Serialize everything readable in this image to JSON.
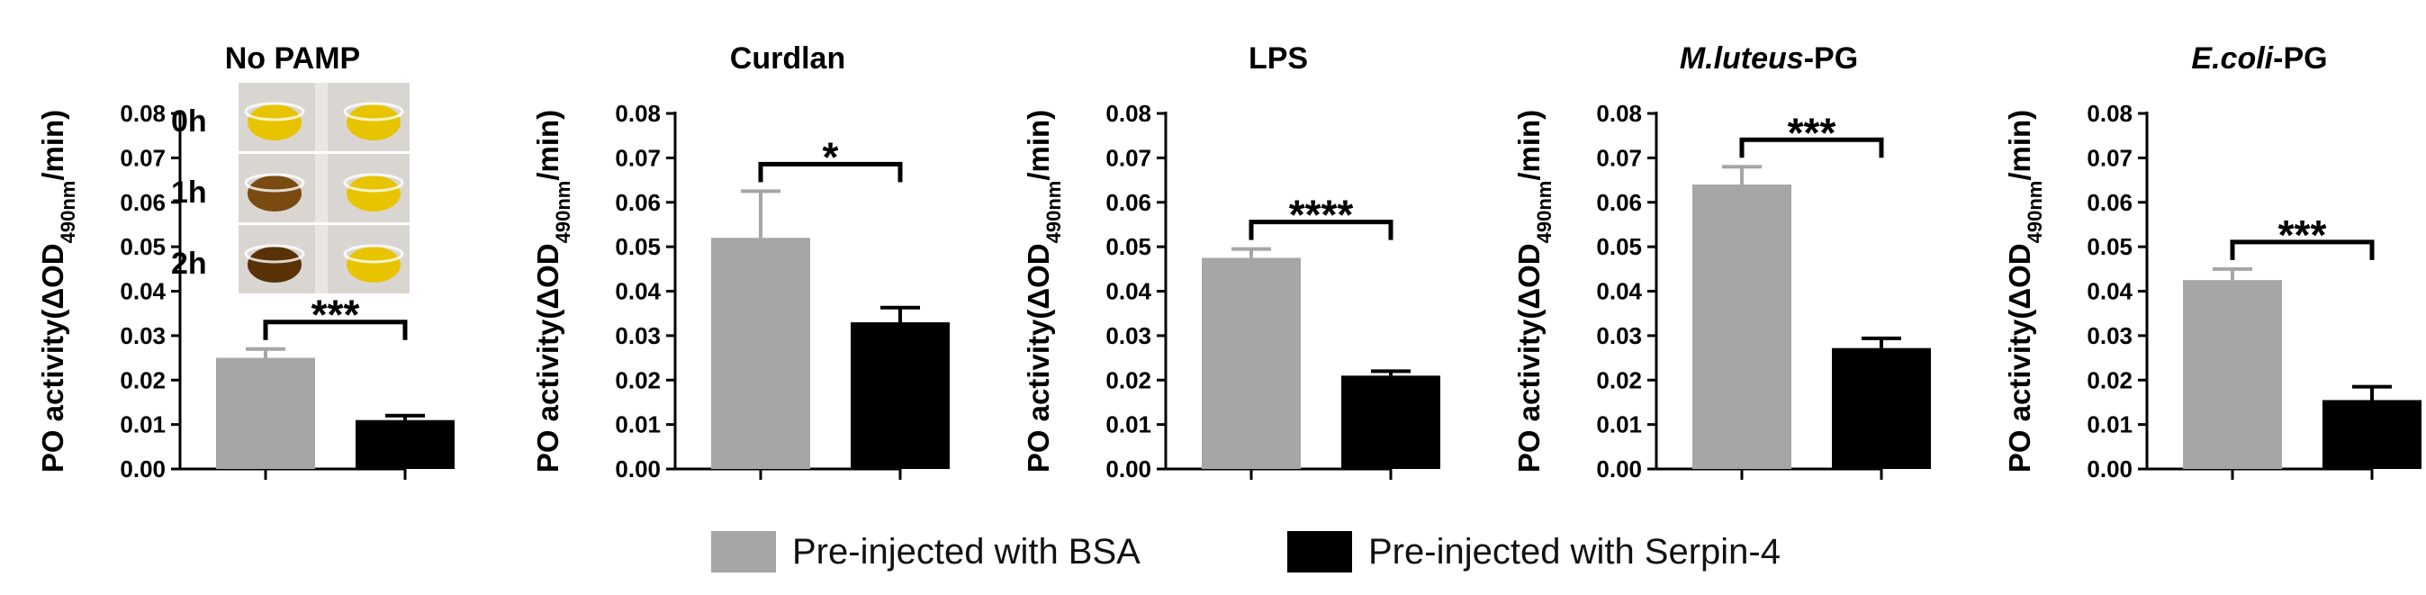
{
  "chart_data": [
    {
      "type": "bar",
      "title": "No PAMP",
      "title_style": "normal",
      "ylabel": "PO activity(ΔOD490nm/min)",
      "ylim": [
        0,
        0.08
      ],
      "yticks": [
        "0.00",
        "0.01",
        "0.02",
        "0.03",
        "0.04",
        "0.05",
        "0.06",
        "0.07",
        "0.08"
      ],
      "series": [
        {
          "name": "Pre-injected with BSA",
          "value": 0.025,
          "error": 0.002
        },
        {
          "name": "Pre-injected with Serpin-4",
          "value": 0.011,
          "error": 0.001
        }
      ],
      "significance": "***",
      "inset": {
        "description": "photo of sample tubes over time",
        "time_labels": [
          "0h",
          "1h",
          "2h"
        ]
      }
    },
    {
      "type": "bar",
      "title": "Curdlan",
      "title_style": "normal",
      "ylabel": "PO activity(ΔOD490nm/min)",
      "ylim": [
        0,
        0.08
      ],
      "yticks": [
        "0.00",
        "0.01",
        "0.02",
        "0.03",
        "0.04",
        "0.05",
        "0.06",
        "0.07",
        "0.08"
      ],
      "series": [
        {
          "name": "Pre-injected with BSA",
          "value": 0.052,
          "error": 0.0105
        },
        {
          "name": "Pre-injected with Serpin-4",
          "value": 0.033,
          "error": 0.0033
        }
      ],
      "significance": "*"
    },
    {
      "type": "bar",
      "title": "LPS",
      "title_style": "normal",
      "ylabel": "PO activity(ΔOD490nm/min)",
      "ylim": [
        0,
        0.08
      ],
      "yticks": [
        "0.00",
        "0.01",
        "0.02",
        "0.03",
        "0.04",
        "0.05",
        "0.06",
        "0.07",
        "0.08"
      ],
      "series": [
        {
          "name": "Pre-injected with BSA",
          "value": 0.0475,
          "error": 0.002
        },
        {
          "name": "Pre-injected with Serpin-4",
          "value": 0.021,
          "error": 0.001
        }
      ],
      "significance": "****"
    },
    {
      "type": "bar",
      "title": "M.luteus-PG",
      "title_prefix": "M.luteus",
      "title_suffix": "-PG",
      "title_style": "italic-prefix",
      "ylabel": "PO activity(ΔOD490nm/min)",
      "ylim": [
        0,
        0.08
      ],
      "yticks": [
        "0.00",
        "0.01",
        "0.02",
        "0.03",
        "0.04",
        "0.05",
        "0.06",
        "0.07",
        "0.08"
      ],
      "series": [
        {
          "name": "Pre-injected with BSA",
          "value": 0.064,
          "error": 0.004
        },
        {
          "name": "Pre-injected with Serpin-4",
          "value": 0.0272,
          "error": 0.0022
        }
      ],
      "significance": "***"
    },
    {
      "type": "bar",
      "title": "E.coli-PG",
      "title_prefix": "E.coli",
      "title_suffix": "-PG",
      "title_style": "italic-prefix",
      "ylabel": "PO activity(ΔOD490nm/min)",
      "ylim": [
        0,
        0.08
      ],
      "yticks": [
        "0.00",
        "0.01",
        "0.02",
        "0.03",
        "0.04",
        "0.05",
        "0.06",
        "0.07",
        "0.08"
      ],
      "series": [
        {
          "name": "Pre-injected with BSA",
          "value": 0.0425,
          "error": 0.0025
        },
        {
          "name": "Pre-injected with Serpin-4",
          "value": 0.0155,
          "error": 0.003
        }
      ],
      "significance": "***"
    }
  ],
  "legend": [
    {
      "label": "Pre-injected with BSA",
      "color": "#a6a6a6"
    },
    {
      "label": "Pre-injected with Serpin-4",
      "color": "#000000"
    }
  ],
  "colors": {
    "bsa": "#a6a6a6",
    "serpin": "#000000",
    "axis": "#000000"
  }
}
